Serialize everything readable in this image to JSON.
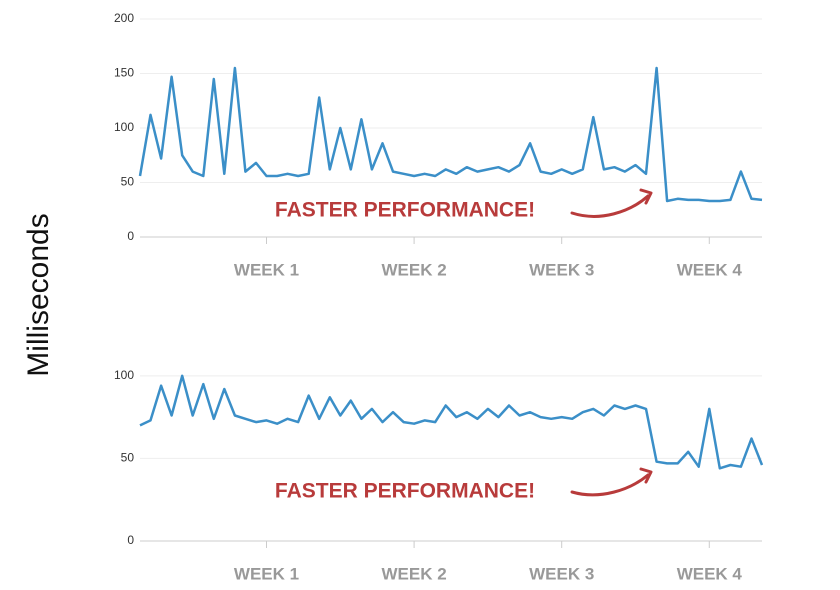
{
  "chart_data": [
    {
      "type": "line",
      "ylabel": "Milliseconds",
      "annotation": "FASTER PERFORMANCE!",
      "x": [
        1,
        1.5,
        2,
        2.5,
        3,
        3.5,
        4,
        4.5,
        5,
        5.5,
        6,
        6.5,
        7,
        7.5,
        8,
        8.5,
        9,
        9.5,
        10,
        10.5,
        11,
        11.5,
        12,
        12.5,
        13,
        13.5,
        14,
        14.5,
        15,
        15.5,
        16,
        16.5,
        17,
        17.5,
        18,
        18.5,
        19,
        19.5,
        20,
        20.5,
        21,
        21.5,
        22,
        22.5,
        23,
        23.5,
        24,
        24.5,
        25,
        25.5,
        26,
        26.5,
        27,
        27.5,
        28,
        28.5,
        29,
        29.5,
        30,
        30.5
      ],
      "series": [
        {
          "color": "#3b8fc8",
          "values": [
            56,
            112,
            72,
            147,
            75,
            60,
            56,
            145,
            58,
            155,
            60,
            68,
            56,
            56,
            58,
            56,
            58,
            128,
            62,
            100,
            62,
            108,
            62,
            86,
            60,
            58,
            56,
            58,
            56,
            62,
            58,
            64,
            60,
            62,
            64,
            60,
            66,
            86,
            60,
            58,
            62,
            58,
            62,
            110,
            62,
            64,
            60,
            66,
            58,
            155,
            33,
            35,
            34,
            34,
            33,
            33,
            34,
            60,
            35,
            34
          ]
        }
      ],
      "xlim": [
        1,
        30.5
      ],
      "xticks": [
        {
          "value": 7,
          "label": "WEEK 1"
        },
        {
          "value": 14,
          "label": "WEEK 2"
        },
        {
          "value": 21,
          "label": "WEEK 3"
        },
        {
          "value": 28,
          "label": "WEEK 4"
        }
      ],
      "ylim": [
        0,
        200
      ],
      "yticks": [
        0,
        50,
        100,
        150,
        200
      ],
      "grid": true
    },
    {
      "type": "line",
      "annotation": "FASTER PERFORMANCE!",
      "x": [
        1,
        1.5,
        2,
        2.5,
        3,
        3.5,
        4,
        4.5,
        5,
        5.5,
        6,
        6.5,
        7,
        7.5,
        8,
        8.5,
        9,
        9.5,
        10,
        10.5,
        11,
        11.5,
        12,
        12.5,
        13,
        13.5,
        14,
        14.5,
        15,
        15.5,
        16,
        16.5,
        17,
        17.5,
        18,
        18.5,
        19,
        19.5,
        20,
        20.5,
        21,
        21.5,
        22,
        22.5,
        23,
        23.5,
        24,
        24.5,
        25,
        25.5,
        26,
        26.5,
        27,
        27.5,
        28,
        28.5,
        29,
        29.5,
        30,
        30.5
      ],
      "series": [
        {
          "color": "#3b8fc8",
          "values": [
            70,
            73,
            94,
            76,
            100,
            76,
            95,
            74,
            92,
            76,
            74,
            72,
            73,
            71,
            74,
            72,
            88,
            74,
            87,
            76,
            85,
            74,
            80,
            72,
            78,
            72,
            71,
            73,
            72,
            82,
            75,
            78,
            74,
            80,
            75,
            82,
            76,
            78,
            75,
            74,
            75,
            74,
            78,
            80,
            76,
            82,
            80,
            82,
            80,
            48,
            47,
            47,
            54,
            45,
            80,
            44,
            46,
            45,
            62,
            46
          ]
        }
      ],
      "xlim": [
        1,
        30.5
      ],
      "xticks": [
        {
          "value": 7,
          "label": "WEEK 1"
        },
        {
          "value": 14,
          "label": "WEEK 2"
        },
        {
          "value": 21,
          "label": "WEEK 3"
        },
        {
          "value": 28,
          "label": "WEEK 4"
        }
      ],
      "ylim": [
        0,
        135
      ],
      "yticks": [
        0,
        50,
        100
      ],
      "grid": true
    }
  ]
}
